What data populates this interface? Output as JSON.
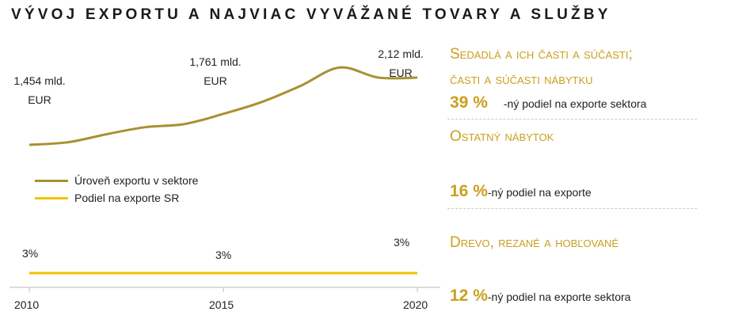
{
  "title": "VÝVOJ EXPORTU A NAJVIAC VYVÁŽANÉ TOVARY A SLUŽBY",
  "colors": {
    "export": "#A8912E",
    "share": "#F2C200",
    "accent": "#C9A01E"
  },
  "chart_data": {
    "type": "line",
    "x": [
      2010,
      2011,
      2012,
      2013,
      2014,
      2015,
      2016,
      2017,
      2018,
      2019,
      2020
    ],
    "series": [
      {
        "name": "Úroveň exportu v sektore",
        "unit": "mld. EUR",
        "values": [
          1.454,
          1.48,
          1.56,
          1.63,
          1.66,
          1.761,
          1.88,
          2.04,
          2.22,
          2.12,
          2.12
        ]
      },
      {
        "name": "Podiel na exporte SR",
        "unit": "%",
        "values": [
          3,
          3,
          3,
          3,
          3,
          3,
          3,
          3,
          3,
          3,
          3
        ]
      }
    ],
    "xticks": [
      "2010",
      "2015",
      "2020"
    ],
    "labels": {
      "export": [
        {
          "v": "1,454 mld.",
          "u": "EUR"
        },
        {
          "v": "1,761 mld.",
          "u": "EUR"
        },
        {
          "v": "2,12 mld.",
          "u": "EUR"
        }
      ],
      "share": [
        "3%",
        "3%",
        "3%"
      ]
    },
    "legend": "left-middle"
  },
  "categories": [
    {
      "name": "Sedadlá a ich časti a súčasti;",
      "name2": "časti a súčasti nábytku",
      "pct": "39 %",
      "desc": "-ný podiel na exporte  sektora"
    },
    {
      "name": "Ostatný nábytok",
      "pct": "16 %",
      "desc": "-ný podiel na exporte"
    },
    {
      "name": "Drevo, rezané a hobľované",
      "pct": "12 %",
      "desc": "-ný podiel na exporte  sektora"
    }
  ]
}
